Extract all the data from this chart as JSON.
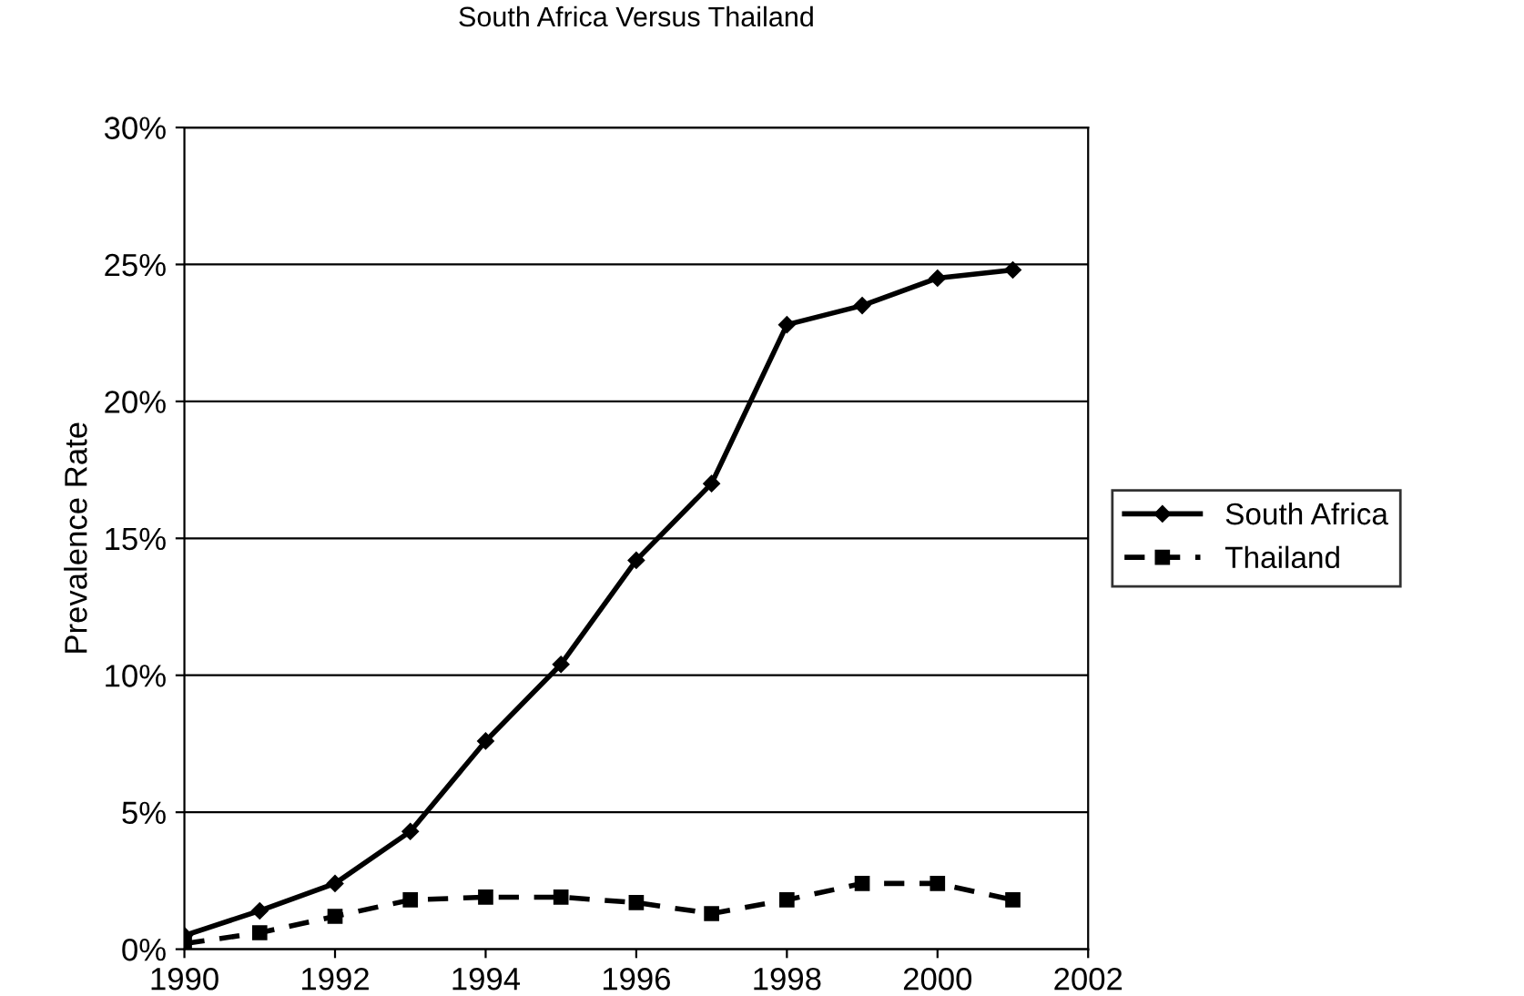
{
  "chart_data": {
    "type": "line",
    "title": "South Africa Versus Thailand",
    "ylabel": "Prevalence Rate",
    "x": [
      1990,
      1991,
      1992,
      1993,
      1994,
      1995,
      1996,
      1997,
      1998,
      1999,
      2000,
      2001
    ],
    "series": [
      {
        "name": "South Africa",
        "color": "#000000",
        "marker": "diamond",
        "line_style": "solid",
        "values": [
          0.5,
          1.4,
          2.4,
          4.3,
          7.6,
          10.4,
          14.2,
          17.0,
          22.8,
          23.5,
          24.5,
          24.8
        ]
      },
      {
        "name": "Thailand",
        "color": "#000000",
        "marker": "square",
        "line_style": "dashed",
        "values": [
          0.2,
          0.6,
          1.2,
          1.8,
          1.9,
          1.9,
          1.7,
          1.3,
          1.8,
          2.4,
          2.4,
          1.8
        ]
      }
    ],
    "xlim": [
      1990,
      2002
    ],
    "xticks": [
      1990,
      1992,
      1994,
      1996,
      1998,
      2000,
      2002
    ],
    "ylim": [
      0,
      30
    ],
    "yticks": [
      {
        "value": 0,
        "label": "0%"
      },
      {
        "value": 5,
        "label": "5%"
      },
      {
        "value": 10,
        "label": "10%"
      },
      {
        "value": 15,
        "label": "15%"
      },
      {
        "value": 20,
        "label": "20%"
      },
      {
        "value": 25,
        "label": "25%"
      },
      {
        "value": 30,
        "label": "30%"
      }
    ],
    "grid": "y",
    "legend": "right"
  }
}
